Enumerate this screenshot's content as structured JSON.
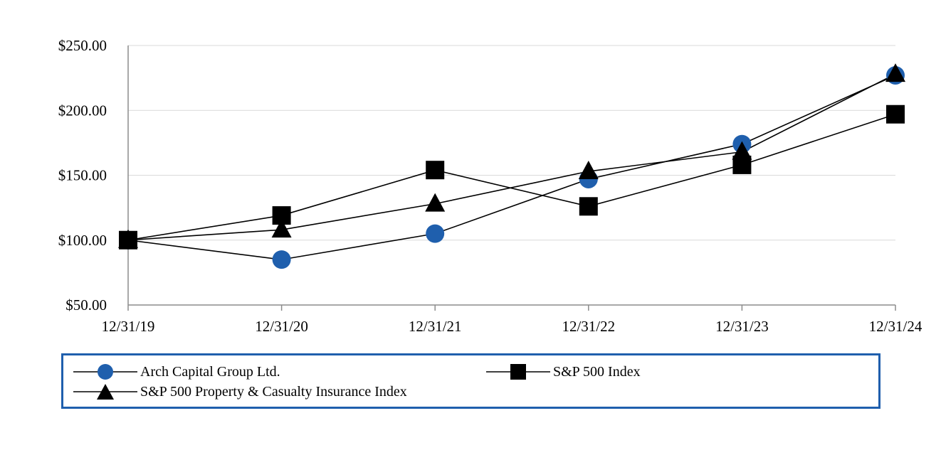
{
  "chart_data": {
    "type": "line",
    "categories": [
      "12/31/19",
      "12/31/20",
      "12/31/21",
      "12/31/22",
      "12/31/23",
      "12/31/24"
    ],
    "series": [
      {
        "name": "Arch Capital Group Ltd.",
        "marker": "circle",
        "color": "#1f5fad",
        "values": [
          100.0,
          85.0,
          105.0,
          147.0,
          174.0,
          227.0
        ]
      },
      {
        "name": "S&P 500 Index",
        "marker": "square",
        "color": "#000000",
        "values": [
          100.0,
          119.0,
          154.0,
          126.0,
          158.0,
          197.0
        ]
      },
      {
        "name": "S&P 500 Property & Casualty Insurance Index",
        "marker": "triangle",
        "color": "#000000",
        "values": [
          100.0,
          108.0,
          128.0,
          153.0,
          168.0,
          228.0
        ]
      }
    ],
    "yticks": [
      "$50.00",
      "$100.00",
      "$150.00",
      "$200.00",
      "$250.00"
    ],
    "ylim": [
      50,
      250
    ],
    "grid": true,
    "legend_position": "bottom",
    "title": "",
    "xlabel": "",
    "ylabel": ""
  }
}
